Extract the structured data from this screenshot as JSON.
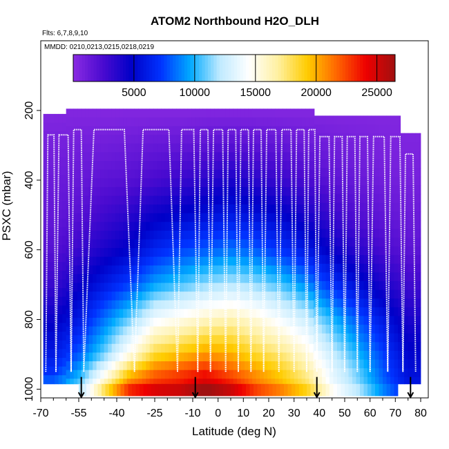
{
  "chart_data": {
    "type": "heatmap",
    "title": "ATOM2 Northbound H2O_DLH",
    "flights_label": "Flts: 6,7,8,9,10",
    "dates_label": "MMDD: 0210,0213,0215,0218,0219",
    "xlabel": "Latitude (deg N)",
    "ylabel": "PSXC (mbar)",
    "xlim": [
      -70,
      83
    ],
    "ylim": [
      1025,
      0
    ],
    "xticks": [
      -70,
      -55,
      -40,
      -25,
      -10,
      0,
      10,
      20,
      30,
      40,
      50,
      60,
      70,
      80
    ],
    "xtick_labels": [
      "-70",
      "-55",
      "-40",
      "-25",
      "-10",
      "0",
      "10",
      "20",
      "30",
      "40",
      "50",
      "60",
      "70",
      "80"
    ],
    "yticks": [
      200,
      400,
      600,
      800,
      1000
    ],
    "ytick_labels": [
      "200",
      "400",
      "600",
      "800",
      "1000"
    ],
    "colorbar": {
      "min": 0,
      "max": 26500,
      "ticks": [
        5000,
        10000,
        15000,
        20000,
        25000
      ],
      "tick_labels": [
        "5000",
        "10000",
        "15000",
        "20000",
        "25000"
      ],
      "colors": [
        "#8a2be2",
        "#4b0bd0",
        "#0000c8",
        "#0033ff",
        "#00aaff",
        "#bfeaff",
        "#ffffff",
        "#fff0a0",
        "#ffcc00",
        "#ff6600",
        "#ee0000",
        "#a01010"
      ]
    },
    "profile_latitudes": [
      -68,
      -64,
      -58,
      -53,
      -33,
      -16,
      -8,
      -3,
      3,
      8,
      13,
      18,
      24,
      30,
      35,
      39,
      45,
      50,
      55,
      60,
      67,
      73,
      78
    ],
    "arrow_latitudes": [
      -54,
      -9,
      39,
      76
    ],
    "flight_segments": [
      {
        "lat_start": -69,
        "lat_end": -60,
        "top_pressure": 210
      },
      {
        "lat_start": -60,
        "lat_end": 38,
        "top_pressure": 195
      },
      {
        "lat_start": 38,
        "lat_end": 72,
        "top_pressure": 215
      },
      {
        "lat_start": 72,
        "lat_end": 80,
        "top_pressure": 265
      }
    ],
    "pressure_levels": [
      200,
      300,
      400,
      500,
      600,
      700,
      800,
      900,
      950,
      1000
    ],
    "water_vapor_ppmv": [
      {
        "lat": -65,
        "values": [
          300,
          800,
          1200,
          1500,
          2000,
          3000,
          4500,
          6000,
          7000,
          9000
        ]
      },
      {
        "lat": -55,
        "values": [
          300,
          900,
          1400,
          2000,
          3000,
          4500,
          6000,
          8000,
          9500,
          11000
        ]
      },
      {
        "lat": -45,
        "values": [
          300,
          1000,
          1800,
          2800,
          4000,
          6000,
          8500,
          11000,
          14000,
          17000
        ]
      },
      {
        "lat": -35,
        "values": [
          300,
          1200,
          2000,
          3500,
          5000,
          7500,
          11000,
          15000,
          19000,
          22000
        ]
      },
      {
        "lat": -25,
        "values": [
          300,
          1400,
          2500,
          4500,
          6500,
          9500,
          14000,
          18500,
          21500,
          23500
        ]
      },
      {
        "lat": -15,
        "values": [
          300,
          1500,
          3000,
          5000,
          7500,
          10500,
          15000,
          19500,
          22500,
          24000
        ]
      },
      {
        "lat": -5,
        "values": [
          300,
          1800,
          3500,
          5500,
          8000,
          11500,
          16000,
          20500,
          23500,
          25500
        ]
      },
      {
        "lat": 5,
        "values": [
          300,
          2000,
          4000,
          6000,
          8500,
          12000,
          16500,
          20000,
          22000,
          24000
        ]
      },
      {
        "lat": 15,
        "values": [
          300,
          1800,
          3500,
          5500,
          8000,
          11500,
          15500,
          18500,
          20500,
          21500
        ]
      },
      {
        "lat": 25,
        "values": [
          300,
          1600,
          3000,
          5000,
          7000,
          10500,
          14000,
          17500,
          19000,
          20000
        ]
      },
      {
        "lat": 35,
        "values": [
          300,
          1300,
          2500,
          4000,
          6000,
          9000,
          12500,
          15500,
          17000,
          18000
        ]
      },
      {
        "lat": 45,
        "values": [
          300,
          1000,
          1800,
          3000,
          4500,
          7000,
          10000,
          12500,
          13500,
          14000
        ]
      },
      {
        "lat": 55,
        "values": [
          300,
          800,
          1400,
          2200,
          3500,
          5500,
          8000,
          10000,
          11000,
          11500
        ]
      },
      {
        "lat": 65,
        "values": [
          300,
          600,
          1000,
          1600,
          2500,
          4000,
          6000,
          7500,
          8000,
          8500
        ]
      },
      {
        "lat": 75,
        "values": [
          300,
          500,
          800,
          1200,
          1800,
          2800,
          4000,
          5000,
          5500,
          6000
        ]
      }
    ]
  }
}
